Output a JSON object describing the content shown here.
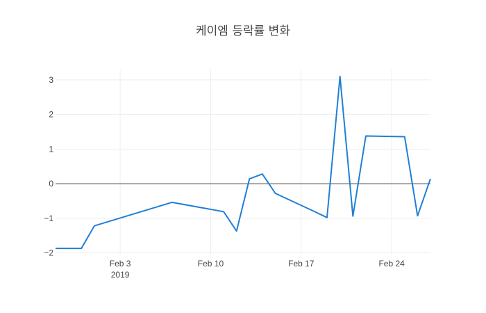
{
  "chart_data": {
    "type": "line",
    "title": "케이엠 등락률 변화",
    "xlabel": "",
    "ylabel": "",
    "x_ticks": [
      {
        "date": "2019-02-03",
        "label": "Feb 3",
        "sublabel": "2019"
      },
      {
        "date": "2019-02-10",
        "label": "Feb 10",
        "sublabel": ""
      },
      {
        "date": "2019-02-17",
        "label": "Feb 17",
        "sublabel": ""
      },
      {
        "date": "2019-02-24",
        "label": "Feb 24",
        "sublabel": ""
      }
    ],
    "y_ticks": [
      {
        "value": 3,
        "label": "3"
      },
      {
        "value": 2,
        "label": "2"
      },
      {
        "value": 1,
        "label": "1"
      },
      {
        "value": 0,
        "label": "0"
      },
      {
        "value": -1,
        "label": "−1"
      },
      {
        "value": -2,
        "label": "−2"
      }
    ],
    "xlim": [
      "2019-01-29",
      "2019-02-27"
    ],
    "ylim": [
      -2.05,
      3.3
    ],
    "grid": true,
    "zero_line": true,
    "series": [
      {
        "color": "#1f7fd6",
        "points": [
          {
            "x": "2019-01-29",
            "y": -1.87
          },
          {
            "x": "2019-01-31",
            "y": -1.87
          },
          {
            "x": "2019-02-01",
            "y": -1.22
          },
          {
            "x": "2019-02-07",
            "y": -0.54
          },
          {
            "x": "2019-02-11",
            "y": -0.81
          },
          {
            "x": "2019-02-12",
            "y": -1.37
          },
          {
            "x": "2019-02-13",
            "y": 0.14
          },
          {
            "x": "2019-02-14",
            "y": 0.28
          },
          {
            "x": "2019-02-15",
            "y": -0.28
          },
          {
            "x": "2019-02-18",
            "y": -0.8
          },
          {
            "x": "2019-02-19",
            "y": -0.98
          },
          {
            "x": "2019-02-20",
            "y": 3.1
          },
          {
            "x": "2019-02-21",
            "y": -0.94
          },
          {
            "x": "2019-02-22",
            "y": 1.38
          },
          {
            "x": "2019-02-25",
            "y": 1.36
          },
          {
            "x": "2019-02-26",
            "y": -0.93
          },
          {
            "x": "2019-02-27",
            "y": 0.14
          }
        ]
      }
    ]
  }
}
